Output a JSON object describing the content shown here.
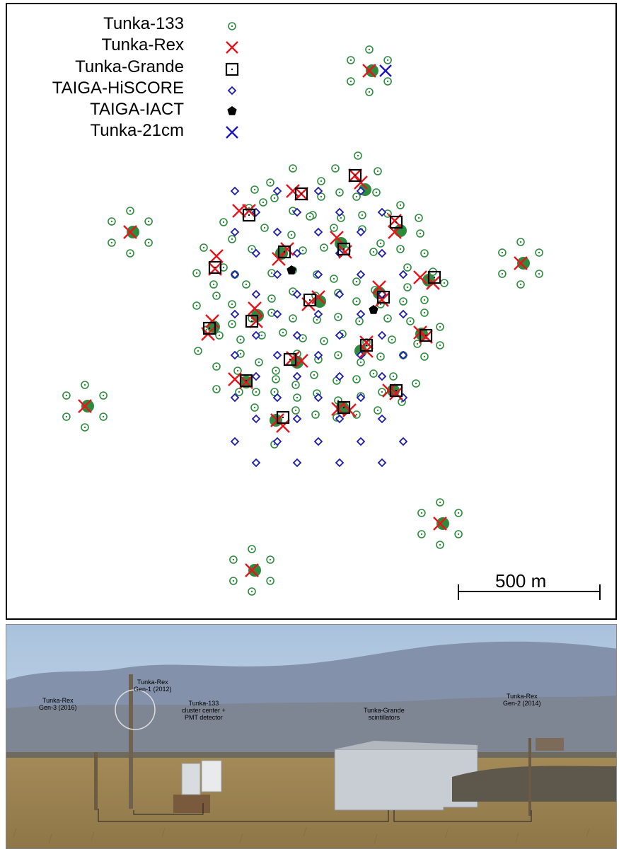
{
  "legend": [
    {
      "id": "tunka133",
      "label": "Tunka-133",
      "symbol": "circle-dot",
      "color": "#2e8b3e"
    },
    {
      "id": "tunkarex",
      "label": "Tunka-Rex",
      "symbol": "x",
      "color": "#e8141b"
    },
    {
      "id": "tunkagrande",
      "label": "Tunka-Grande",
      "symbol": "square-dot",
      "color": "#000000"
    },
    {
      "id": "hiscore",
      "label": "TAIGA-HiSCORE",
      "symbol": "diamond",
      "color": "#1a1ab8"
    },
    {
      "id": "iact",
      "label": "TAIGA-IACT",
      "symbol": "pentagon",
      "color": "#000000"
    },
    {
      "id": "cm21",
      "label": "Tunka-21cm",
      "symbol": "x",
      "color": "#1a1ab8"
    }
  ],
  "scale_bar": {
    "label": "500 m"
  },
  "photo": {
    "labels": {
      "rex_gen1": "Tunka-Rex\nGen-1 (2012)",
      "rex_gen3": "Tunka-Rex\nGen-3 (2016)",
      "t133": "Tunka-133\ncluster center +\nPMT detector",
      "grande": "Tunka-Grande\nscintillators",
      "rex_gen2": "Tunka-Rex\nGen-2 (2014)"
    },
    "colors": {
      "sky": "#b8cde2",
      "mountain": "#7c8ba6",
      "field": "#a89160",
      "building": "#cfd3d8"
    }
  },
  "colors": {
    "tunka133": "#2e8b3e",
    "rex": "#e8141b",
    "hiscore": "#1a1ab8",
    "cm21": "#1a1ab8",
    "black": "#000000",
    "cluster_center": "#2e8b3e"
  }
}
